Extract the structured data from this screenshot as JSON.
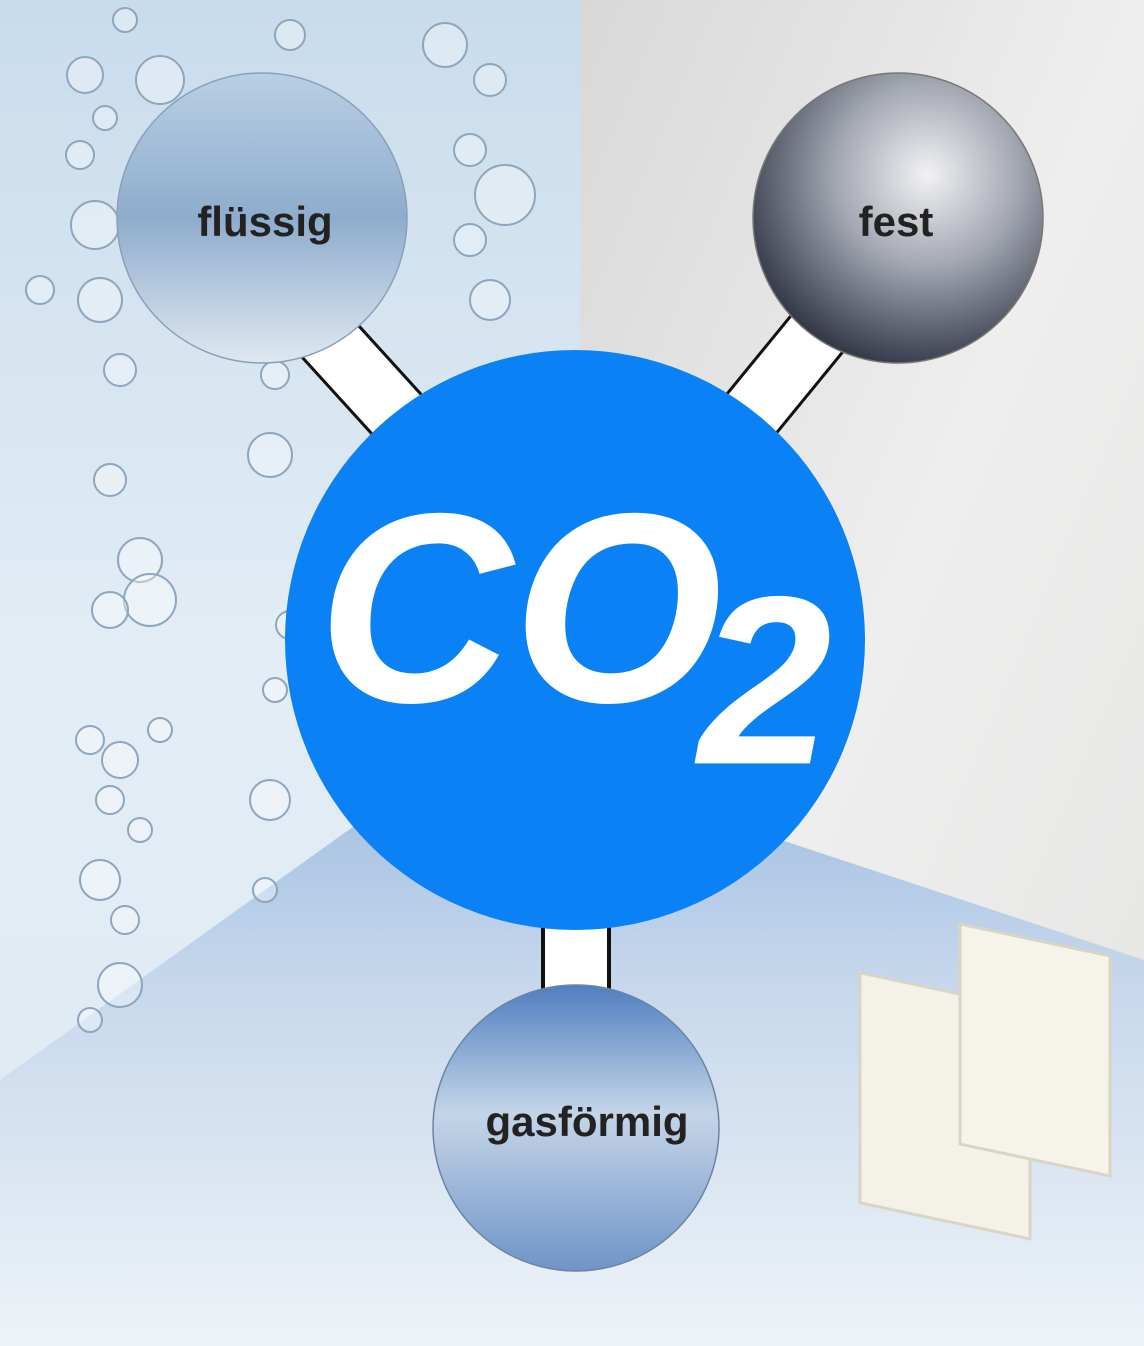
{
  "center": {
    "text": "CO",
    "subscript": "2"
  },
  "nodes": [
    {
      "label": "flüssig"
    },
    {
      "label": "fest"
    },
    {
      "label": "gasförmig"
    }
  ]
}
